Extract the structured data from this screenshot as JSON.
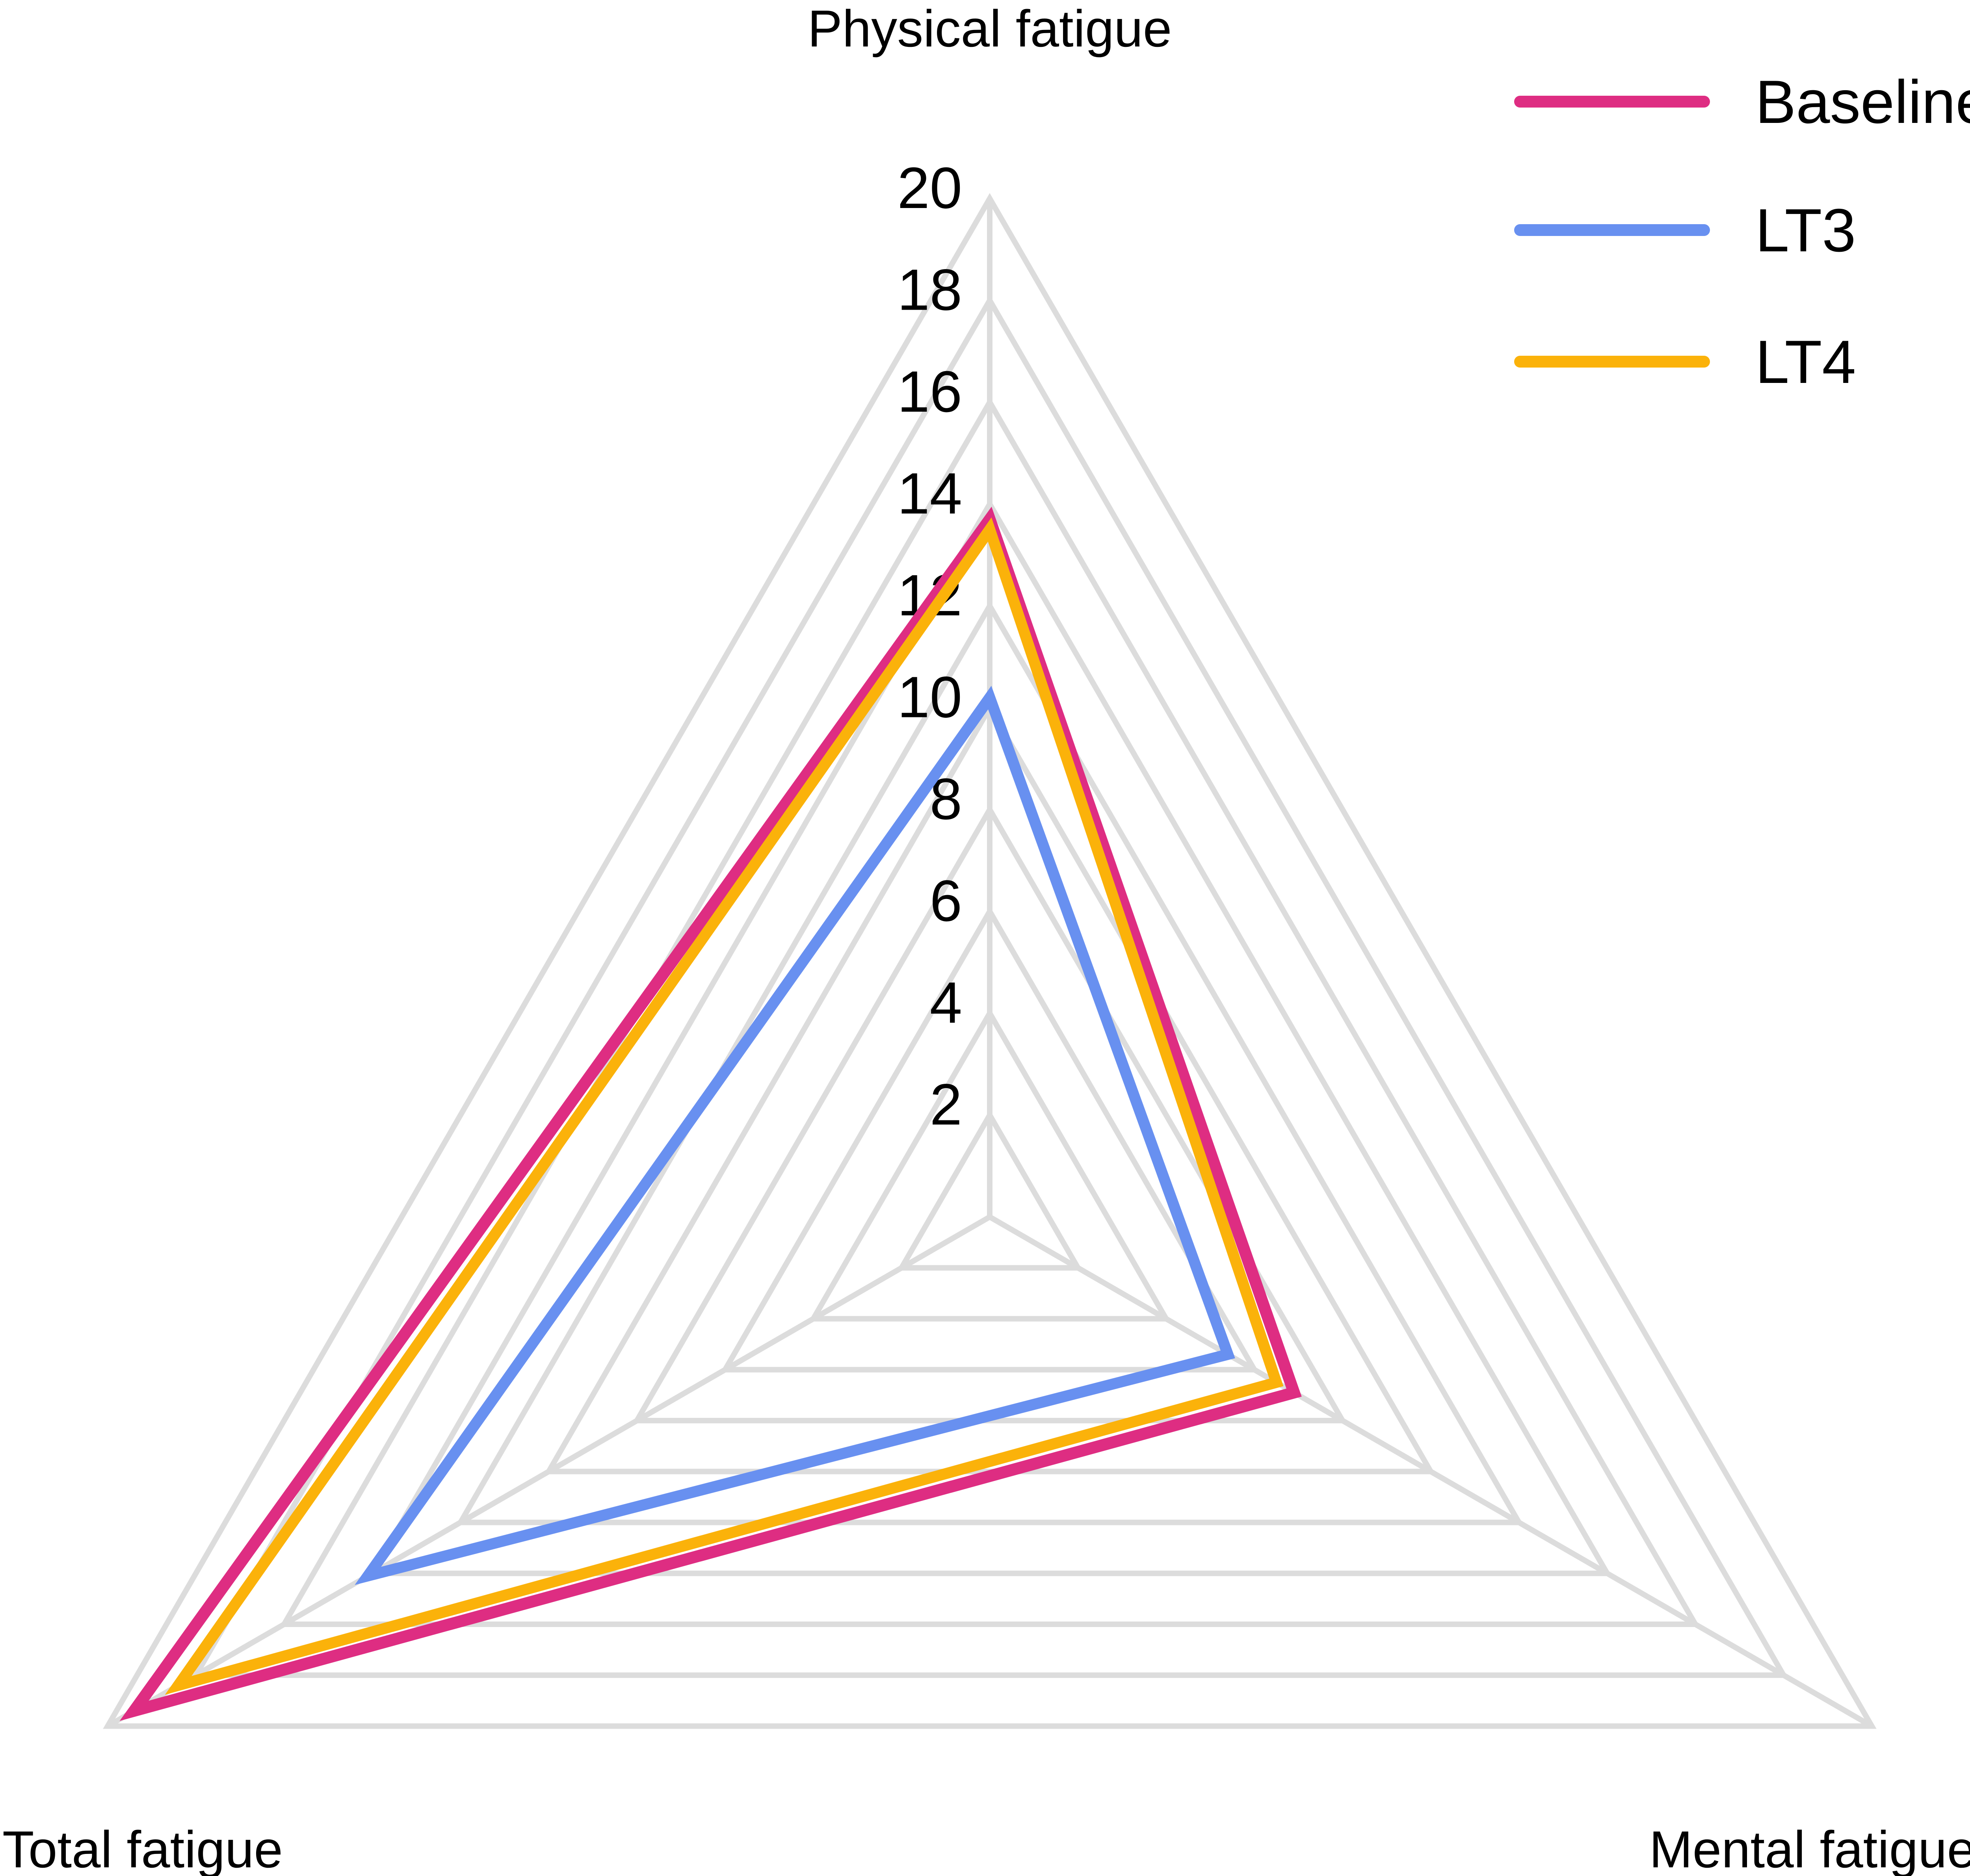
{
  "chart_data": {
    "type": "radar",
    "axes": [
      "Physical fatigue",
      "Mental fatigue",
      "Total fatigue"
    ],
    "rlim": [
      0,
      20
    ],
    "ticks": [
      2,
      4,
      6,
      8,
      10,
      12,
      14,
      16,
      18,
      20
    ],
    "grid": true,
    "legend_position": "top-right",
    "series": [
      {
        "name": "Baseline",
        "color": "#DE2D82",
        "values": [
          13.7,
          6.9,
          19.4
        ]
      },
      {
        "name": "LT3",
        "color": "#6890F0",
        "values": [
          10.2,
          5.4,
          14.1
        ]
      },
      {
        "name": "LT4",
        "color": "#FBB20A",
        "values": [
          13.5,
          6.5,
          18.4
        ]
      }
    ],
    "colors": {
      "grid": "#DCDCDC",
      "text": "#000000",
      "background": "#FFFFFF"
    }
  }
}
